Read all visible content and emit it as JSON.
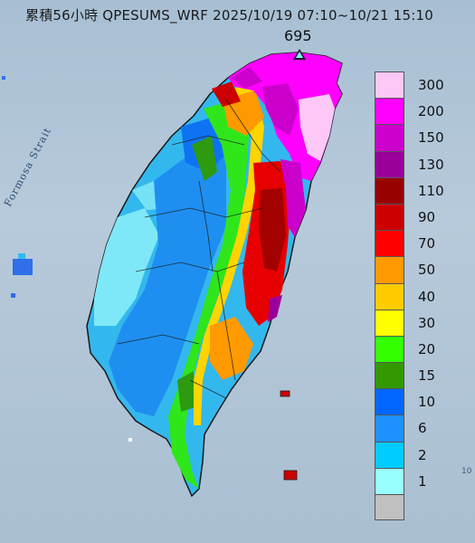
{
  "title": "累積56小時 QPESUMS_WRF 2025/10/19 07:10~10/21 15:10",
  "max_value": "695",
  "strait_label": "Formosa Strait",
  "corner_mark": "10",
  "legend": [
    {
      "label": "300",
      "color": "#fdc8f6"
    },
    {
      "label": "200",
      "color": "#ff00ff"
    },
    {
      "label": "150",
      "color": "#cc00cc"
    },
    {
      "label": "130",
      "color": "#9a0099"
    },
    {
      "label": "110",
      "color": "#990000"
    },
    {
      "label": "90",
      "color": "#cc0000"
    },
    {
      "label": "70",
      "color": "#ff0000"
    },
    {
      "label": "50",
      "color": "#ff9900"
    },
    {
      "label": "40",
      "color": "#ffcc00"
    },
    {
      "label": "30",
      "color": "#ffff00"
    },
    {
      "label": "20",
      "color": "#33ff00"
    },
    {
      "label": "15",
      "color": "#339900"
    },
    {
      "label": "10",
      "color": "#0066ff"
    },
    {
      "label": "6",
      "color": "#1e90ff"
    },
    {
      "label": "2",
      "color": "#00ccff"
    },
    {
      "label": "1",
      "color": "#99ffff"
    },
    {
      "label": "",
      "color": "#c0c0c0"
    }
  ]
}
